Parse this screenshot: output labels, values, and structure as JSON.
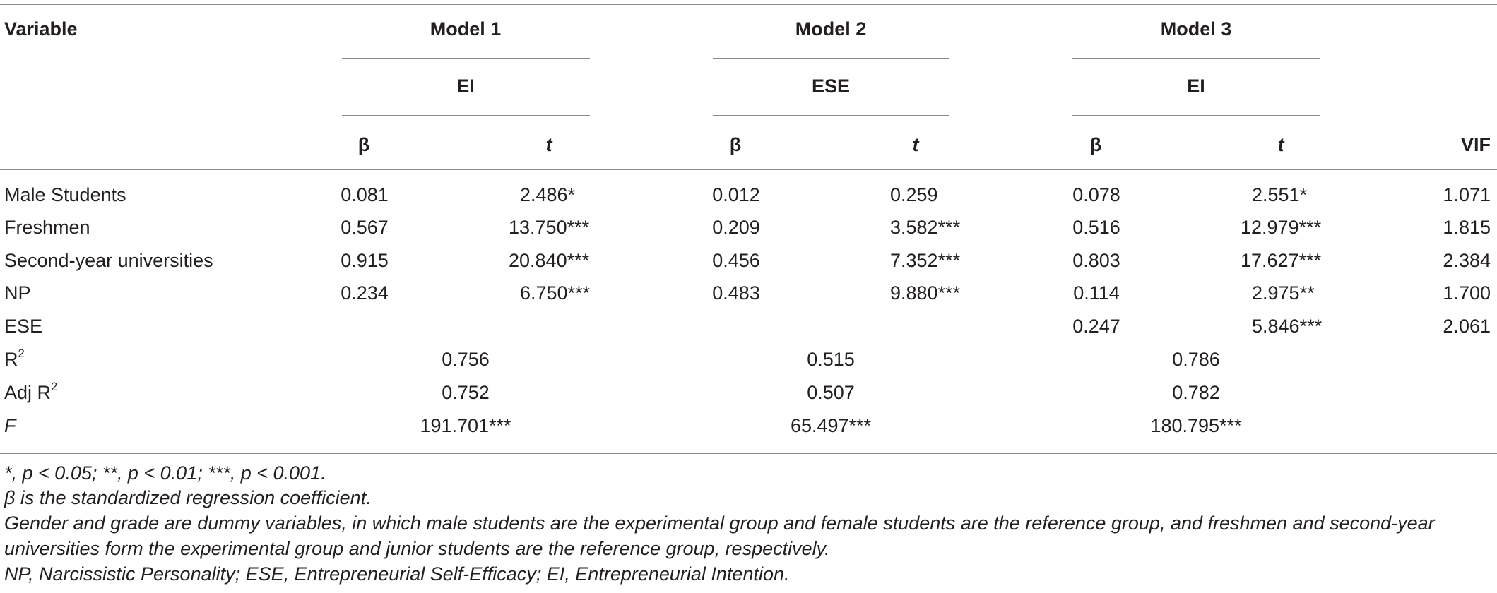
{
  "header": {
    "variable": "Variable",
    "models": [
      {
        "label": "Model 1",
        "dv": "EI"
      },
      {
        "label": "Model 2",
        "dv": "ESE"
      },
      {
        "label": "Model 3",
        "dv": "EI"
      }
    ],
    "beta": "β",
    "t": "t",
    "vif": "VIF"
  },
  "rows": [
    {
      "label": "Male Students",
      "m1b": "0.081",
      "m1t": "2.486*",
      "m2b": "0.012",
      "m2t": "0.259",
      "m3b": "0.078",
      "m3t": "2.551*",
      "vif": "1.071"
    },
    {
      "label": "Freshmen",
      "m1b": "0.567",
      "m1t": "13.750***",
      "m2b": "0.209",
      "m2t": "3.582***",
      "m3b": "0.516",
      "m3t": "12.979***",
      "vif": "1.815"
    },
    {
      "label": "Second-year universities",
      "m1b": "0.915",
      "m1t": "20.840***",
      "m2b": "0.456",
      "m2t": "7.352***",
      "m3b": "0.803",
      "m3t": "17.627***",
      "vif": "2.384"
    },
    {
      "label": "NP",
      "m1b": "0.234",
      "m1t": "6.750***",
      "m2b": "0.483",
      "m2t": "9.880***",
      "m3b": "0.114",
      "m3t": "2.975**",
      "vif": "1.700"
    },
    {
      "label": "ESE",
      "m1b": "",
      "m1t": "",
      "m2b": "",
      "m2t": "",
      "m3b": "0.247",
      "m3t": "5.846***",
      "vif": "2.061"
    }
  ],
  "stats": [
    {
      "label": "R",
      "sup": "2",
      "m1": "0.756",
      "m2": "0.515",
      "m3": "0.786"
    },
    {
      "label": "Adj R",
      "sup": "2",
      "m1": "0.752",
      "m2": "0.507",
      "m3": "0.782"
    },
    {
      "label": "F",
      "sup": "",
      "m1": "191.701***",
      "m2": "65.497***",
      "m3": "180.795***"
    }
  ],
  "notes": [
    "*, p < 0.05; **, p < 0.01; ***, p < 0.001.",
    "β is the standardized regression coefficient.",
    "Gender and grade are dummy variables, in which male students are the experimental group and female students are the reference group, and freshmen and second-year",
    "universities form the experimental group and junior students are the reference group, respectively.",
    "NP, Narcissistic Personality; ESE, Entrepreneurial Self-Efficacy; EI, Entrepreneurial Intention."
  ]
}
